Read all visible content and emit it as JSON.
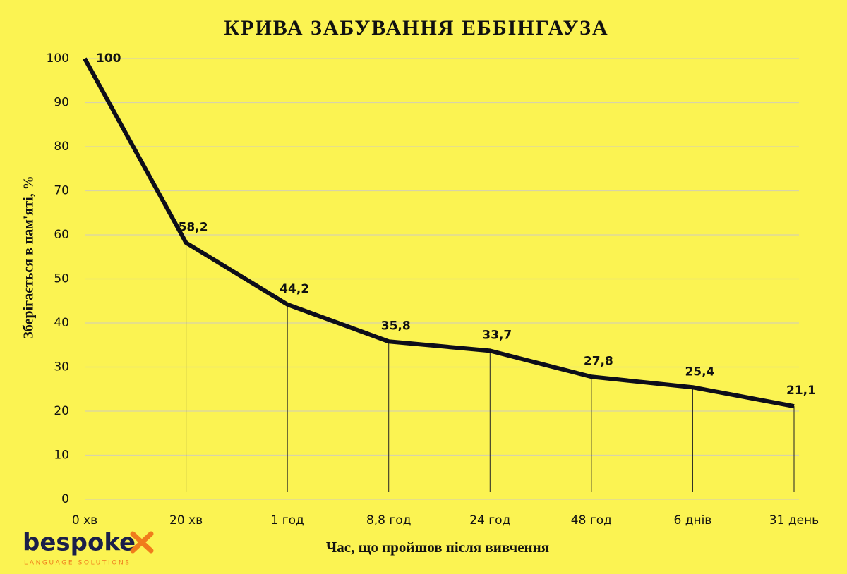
{
  "chart_data": {
    "type": "line",
    "title": "КРИВА ЗАБУВАННЯ ЕББІНГАУЗА",
    "x_label": "Час, що пройшов після вивчення",
    "y_label": "Зберігається в пам'яті, %",
    "categories": [
      "0 хв",
      "20 хв",
      "1 год",
      "8,8 год",
      "24 год",
      "48 год",
      "6 днів",
      "31 день"
    ],
    "values": [
      100,
      58.2,
      44.2,
      35.8,
      33.7,
      27.8,
      25.4,
      21.1
    ],
    "value_labels": [
      "100",
      "58,2",
      "44,2",
      "35,8",
      "33,7",
      "27,8",
      "25,4",
      "21,1"
    ],
    "color": "#0d0d1a",
    "ylim": [
      0,
      100
    ],
    "yticks": [
      0,
      10,
      20,
      30,
      40,
      50,
      60,
      70,
      80,
      90,
      100
    ],
    "grid": true,
    "drop_lines": true
  },
  "logo": {
    "name": "bespoke",
    "tagline": "LANGUAGE SOLUTIONS"
  }
}
